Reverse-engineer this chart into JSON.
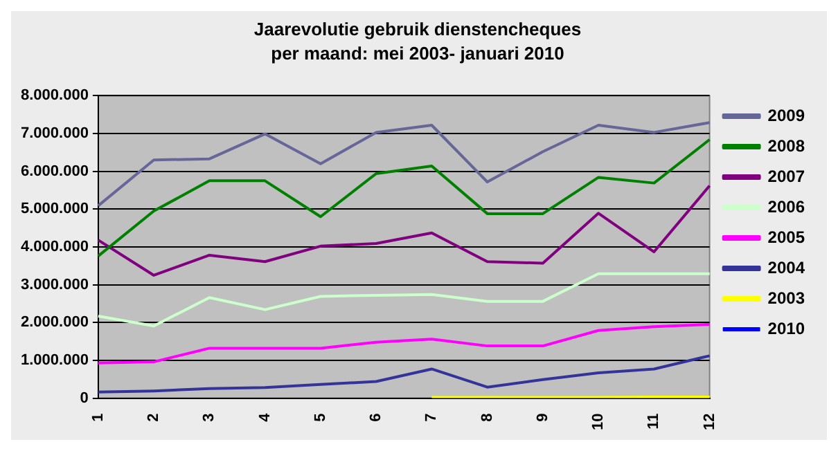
{
  "chart_data": {
    "type": "line",
    "title": "Jaarevolutie gebruik dienstencheques",
    "subtitle": "per maand: mei 2003- januari 2010",
    "categories": [
      "1",
      "2",
      "3",
      "4",
      "5",
      "6",
      "7",
      "8",
      "9",
      "10",
      "11",
      "12"
    ],
    "series": [
      {
        "name": "2009",
        "color": "#666699",
        "values": [
          5090000,
          6300000,
          6330000,
          6990000,
          6200000,
          7030000,
          7220000,
          5720000,
          6520000,
          7220000,
          7030000,
          7290000
        ]
      },
      {
        "name": "2008",
        "color": "#008000",
        "values": [
          3760000,
          4950000,
          5750000,
          5750000,
          4800000,
          5940000,
          6140000,
          4880000,
          4880000,
          5840000,
          5690000,
          6840000
        ]
      },
      {
        "name": "2007",
        "color": "#800080",
        "values": [
          4180000,
          3250000,
          3780000,
          3610000,
          4020000,
          4090000,
          4370000,
          3610000,
          3570000,
          4890000,
          3870000,
          5620000
        ]
      },
      {
        "name": "2006",
        "color": "#ccffcc",
        "values": [
          2170000,
          1910000,
          2660000,
          2340000,
          2690000,
          2720000,
          2740000,
          2560000,
          2560000,
          3290000,
          3290000,
          3290000
        ]
      },
      {
        "name": "2005",
        "color": "#ff00ff",
        "values": [
          930000,
          960000,
          1320000,
          1320000,
          1320000,
          1480000,
          1560000,
          1380000,
          1380000,
          1790000,
          1890000,
          1950000
        ]
      },
      {
        "name": "2004",
        "color": "#333399",
        "values": [
          160000,
          190000,
          250000,
          280000,
          360000,
          440000,
          770000,
          290000,
          490000,
          670000,
          770000,
          1120000
        ]
      },
      {
        "name": "2003",
        "color": "#ffff00",
        "values": [
          null,
          null,
          null,
          null,
          null,
          null,
          20000,
          20000,
          20000,
          20000,
          30000,
          30000
        ]
      },
      {
        "name": "2010",
        "color": "#0000ff",
        "values": [
          null,
          null,
          null,
          null,
          null,
          null,
          null,
          null,
          null,
          null,
          null,
          null
        ]
      }
    ],
    "ylim": [
      0,
      8000000
    ],
    "yticks": [
      0,
      {
        "value": 1000000,
        "label": "1.000.000"
      },
      {
        "value": 2000000,
        "label": "2.000.000"
      },
      {
        "value": 3000000,
        "label": "3.000.000"
      },
      {
        "value": 4000000,
        "label": "4.000.000"
      },
      {
        "value": 5000000,
        "label": "5.000.000"
      },
      {
        "value": 6000000,
        "label": "6.000.000"
      },
      {
        "value": 7000000,
        "label": "7.000.000"
      },
      {
        "value": 8000000,
        "label": "8.000.000"
      }
    ],
    "grid": "y",
    "legend": "right",
    "marker": "none",
    "line_style": "solid"
  }
}
